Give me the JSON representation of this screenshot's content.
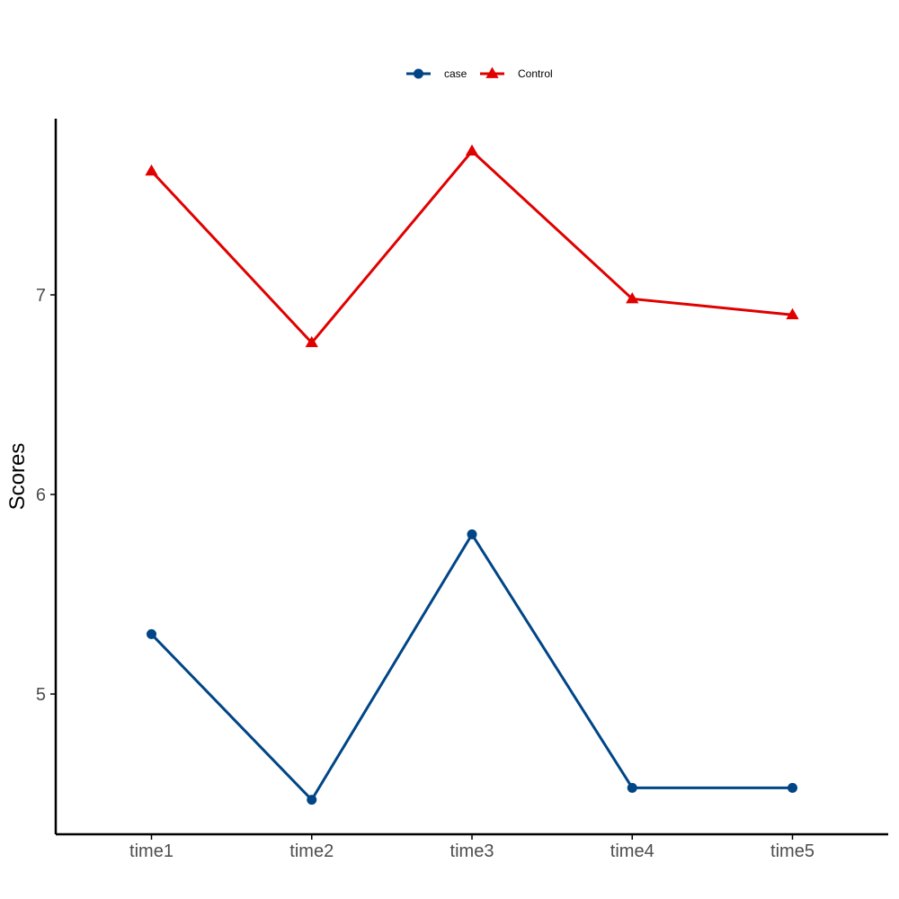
{
  "chart_data": {
    "type": "line",
    "title": "",
    "xlabel": "",
    "ylabel": "Scores",
    "categories": [
      "time1",
      "time2",
      "time3",
      "time4",
      "time5"
    ],
    "yticks": [
      5,
      6,
      7
    ],
    "ylim": [
      4.3,
      7.9
    ],
    "grid": false,
    "legend_position": "top-center",
    "series": [
      {
        "name": "case",
        "values": [
          5.3,
          4.47,
          5.8,
          4.53,
          4.53
        ],
        "color": "#004586",
        "marker": "circle"
      },
      {
        "name": "Control",
        "values": [
          7.62,
          6.76,
          7.72,
          6.98,
          6.9
        ],
        "color": "#e00000",
        "marker": "triangle"
      }
    ]
  }
}
